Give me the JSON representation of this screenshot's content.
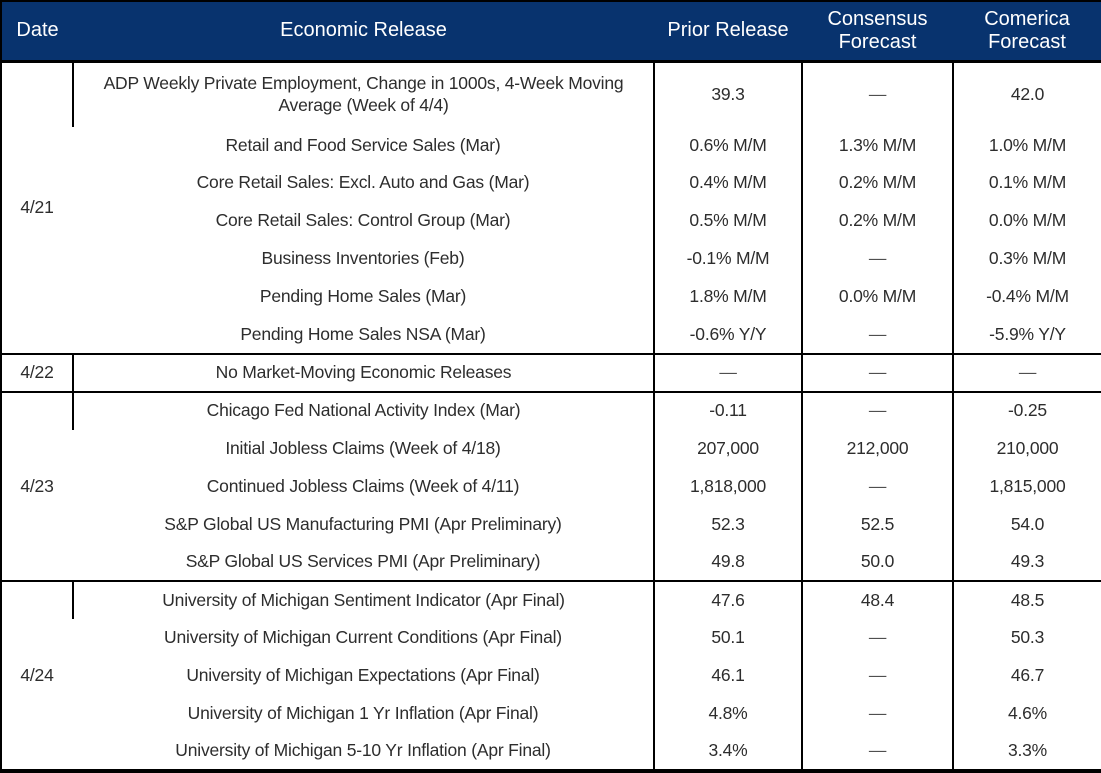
{
  "colors": {
    "header_bg": "#08336e",
    "header_text": "#ffffff",
    "body_text": "#2d2d2d",
    "border": "#000000"
  },
  "header": {
    "columns": [
      "Date",
      "Economic Release",
      "Prior Release",
      "Consensus Forecast",
      "Comerica Forecast"
    ]
  },
  "groups": [
    {
      "date": "4/21",
      "rows": [
        {
          "release": "ADP Weekly Private Employment, Change in 1000s, 4-Week Moving Average (Week of 4/4)",
          "prior": "39.3",
          "consensus": "—",
          "comerica": "42.0",
          "tall": true
        },
        {
          "release": "Retail and Food Service Sales (Mar)",
          "prior": "0.6% M/M",
          "consensus": "1.3% M/M",
          "comerica": "1.0% M/M"
        },
        {
          "release": "Core Retail Sales: Excl. Auto and Gas (Mar)",
          "prior": "0.4% M/M",
          "consensus": "0.2% M/M",
          "comerica": "0.1% M/M"
        },
        {
          "release": "Core Retail Sales: Control Group (Mar)",
          "prior": "0.5% M/M",
          "consensus": "0.2% M/M",
          "comerica": "0.0% M/M"
        },
        {
          "release": "Business Inventories (Feb)",
          "prior": "-0.1% M/M",
          "consensus": "—",
          "comerica": "0.3% M/M"
        },
        {
          "release": "Pending Home Sales (Mar)",
          "prior": "1.8% M/M",
          "consensus": "0.0% M/M",
          "comerica": "-0.4% M/M"
        },
        {
          "release": "Pending Home Sales NSA (Mar)",
          "prior": "-0.6% Y/Y",
          "consensus": "—",
          "comerica": "-5.9% Y/Y"
        }
      ]
    },
    {
      "date": "4/22",
      "rows": [
        {
          "release": "No Market-Moving Economic Releases",
          "prior": "—",
          "consensus": "—",
          "comerica": "—"
        }
      ]
    },
    {
      "date": "4/23",
      "rows": [
        {
          "release": "Chicago Fed National Activity Index (Mar)",
          "prior": "-0.11",
          "consensus": "—",
          "comerica": "-0.25"
        },
        {
          "release": "Initial Jobless Claims (Week of 4/18)",
          "prior": "207,000",
          "consensus": "212,000",
          "comerica": "210,000"
        },
        {
          "release": "Continued Jobless Claims (Week of 4/11)",
          "prior": "1,818,000",
          "consensus": "—",
          "comerica": "1,815,000"
        },
        {
          "release": "S&P Global US Manufacturing PMI (Apr Preliminary)",
          "prior": "52.3",
          "consensus": "52.5",
          "comerica": "54.0"
        },
        {
          "release": "S&P Global US Services PMI (Apr Preliminary)",
          "prior": "49.8",
          "consensus": "50.0",
          "comerica": "49.3"
        }
      ]
    },
    {
      "date": "4/24",
      "rows": [
        {
          "release": "University of Michigan Sentiment Indicator (Apr Final)",
          "prior": "47.6",
          "consensus": "48.4",
          "comerica": "48.5"
        },
        {
          "release": "University of Michigan Current Conditions (Apr Final)",
          "prior": "50.1",
          "consensus": "—",
          "comerica": "50.3"
        },
        {
          "release": "University of Michigan Expectations (Apr Final)",
          "prior": "46.1",
          "consensus": "—",
          "comerica": "46.7"
        },
        {
          "release": "University of Michigan 1 Yr Inflation (Apr Final)",
          "prior": "4.8%",
          "consensus": "—",
          "comerica": "4.6%"
        },
        {
          "release": "University of Michigan 5-10 Yr Inflation (Apr Final)",
          "prior": "3.4%",
          "consensus": "—",
          "comerica": "3.3%"
        }
      ]
    }
  ]
}
